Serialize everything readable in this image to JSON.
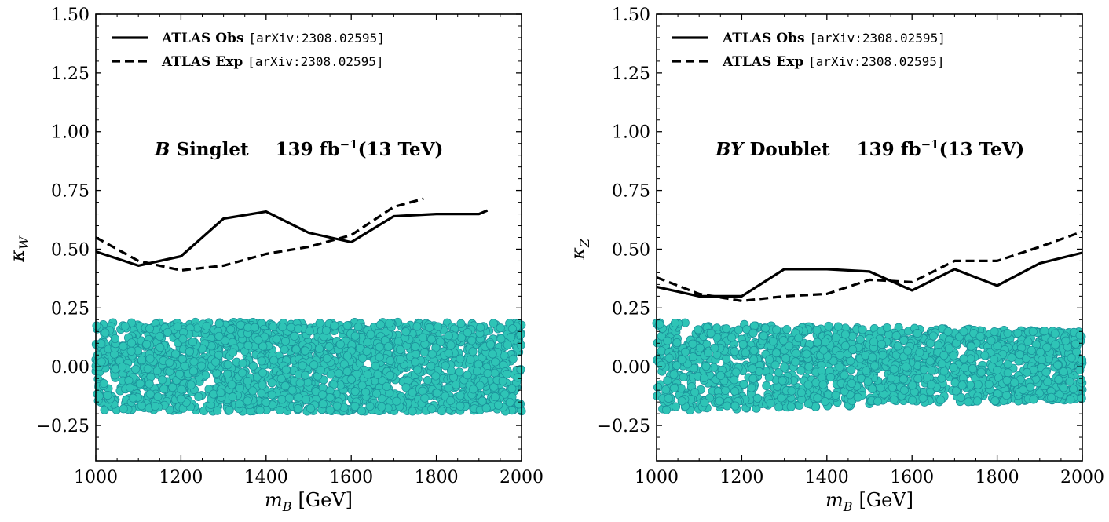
{
  "chart_data": [
    {
      "type": "line+scatter",
      "panel": "left",
      "xlabel_var": "m",
      "xlabel_sub": "B",
      "xlabel_unit": "[GeV]",
      "ylabel_var": "κ",
      "ylabel_sub": "W",
      "xlim": [
        1000,
        2000
      ],
      "ylim": [
        -0.4,
        1.5
      ],
      "xticks": [
        1000,
        1200,
        1400,
        1600,
        1800,
        2000
      ],
      "xtick_labels": [
        "1000",
        "1200",
        "1400",
        "1600",
        "1800",
        "2000"
      ],
      "yticks": [
        -0.25,
        0,
        0.25,
        0.5,
        0.75,
        1.0,
        1.25,
        1.5
      ],
      "ytick_labels": [
        "−0.25",
        "0.00",
        "0.25",
        "0.50",
        "0.75",
        "1.00",
        "1.25",
        "1.50"
      ],
      "annotation": {
        "model": "B",
        "model_rest": " Singlet",
        "lumi": "139 fb",
        "lumi_sup": "−1",
        "energy": "(13 TeV)"
      },
      "legend": [
        {
          "label": "ATLAS Obs",
          "ref": "[arXiv:2308.02595]",
          "style": "solid"
        },
        {
          "label": "ATLAS Exp",
          "ref": "[arXiv:2308.02595]",
          "style": "dashed"
        }
      ],
      "series": [
        {
          "name": "ATLAS Obs",
          "style": "solid",
          "x": [
            1000,
            1100,
            1200,
            1300,
            1400,
            1500,
            1600,
            1700,
            1800,
            1900,
            1920
          ],
          "y": [
            0.49,
            0.43,
            0.47,
            0.63,
            0.66,
            0.57,
            0.53,
            0.64,
            0.65,
            0.65,
            0.665
          ]
        },
        {
          "name": "ATLAS Exp",
          "style": "dashed",
          "x": [
            1000,
            1100,
            1200,
            1300,
            1400,
            1500,
            1600,
            1700,
            1770
          ],
          "y": [
            0.55,
            0.45,
            0.41,
            0.43,
            0.48,
            0.51,
            0.56,
            0.68,
            0.715
          ]
        }
      ],
      "scatter": {
        "x_range": [
          1000,
          2000
        ],
        "y_min_start": -0.19,
        "y_min_end": -0.19,
        "y_max_start": 0.19,
        "y_max_end": 0.19,
        "n_points": 2000,
        "color": "#2ec4b6"
      }
    },
    {
      "type": "line+scatter",
      "panel": "right",
      "xlabel_var": "m",
      "xlabel_sub": "B",
      "xlabel_unit": "[GeV]",
      "ylabel_var": "κ",
      "ylabel_sub": "Z",
      "xlim": [
        1000,
        2000
      ],
      "ylim": [
        -0.4,
        1.5
      ],
      "xticks": [
        1000,
        1200,
        1400,
        1600,
        1800,
        2000
      ],
      "xtick_labels": [
        "1000",
        "1200",
        "1400",
        "1600",
        "1800",
        "2000"
      ],
      "yticks": [
        -0.25,
        0,
        0.25,
        0.5,
        0.75,
        1.0,
        1.25,
        1.5
      ],
      "ytick_labels": [
        "−0.25",
        "0.00",
        "0.25",
        "0.50",
        "0.75",
        "1.00",
        "1.25",
        "1.50"
      ],
      "annotation": {
        "model": "BY",
        "model_rest": " Doublet",
        "lumi": "139 fb",
        "lumi_sup": "−1",
        "energy": "(13 TeV)"
      },
      "legend": [
        {
          "label": "ATLAS Obs",
          "ref": "[arXiv:2308.02595]",
          "style": "solid"
        },
        {
          "label": "ATLAS Exp",
          "ref": "[arXiv:2308.02595]",
          "style": "dashed"
        }
      ],
      "series": [
        {
          "name": "ATLAS Obs",
          "style": "solid",
          "x": [
            1000,
            1100,
            1200,
            1300,
            1400,
            1500,
            1600,
            1700,
            1800,
            1900,
            2000
          ],
          "y": [
            0.34,
            0.3,
            0.3,
            0.415,
            0.415,
            0.405,
            0.325,
            0.415,
            0.345,
            0.44,
            0.485
          ]
        },
        {
          "name": "ATLAS Exp",
          "style": "dashed",
          "x": [
            1000,
            1100,
            1200,
            1300,
            1400,
            1500,
            1600,
            1700,
            1800,
            1900,
            2000
          ],
          "y": [
            0.38,
            0.31,
            0.28,
            0.3,
            0.31,
            0.37,
            0.36,
            0.45,
            0.45,
            0.51,
            0.575
          ]
        }
      ],
      "scatter": {
        "x_range": [
          1000,
          2000
        ],
        "y_min_start": -0.19,
        "y_min_end": -0.14,
        "y_max_start": 0.19,
        "y_max_end": 0.15,
        "n_points": 1700,
        "color": "#2ec4b6"
      }
    }
  ]
}
